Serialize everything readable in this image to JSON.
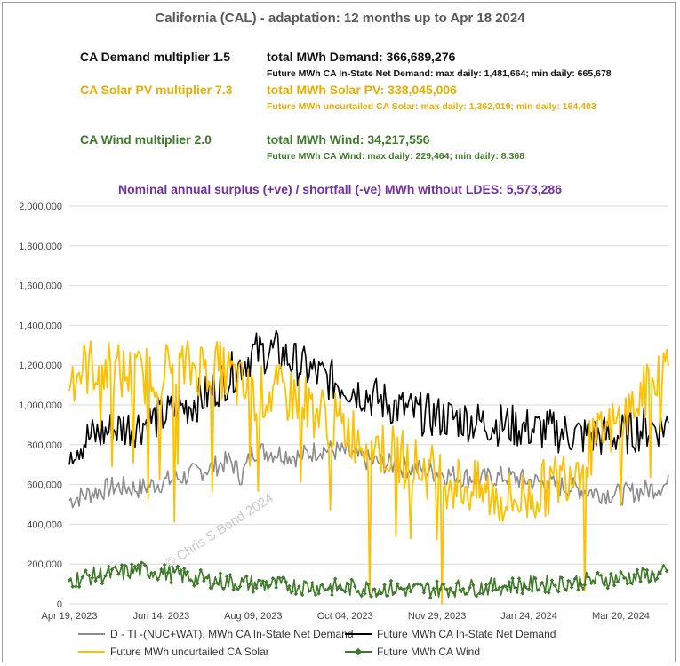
{
  "title": "California (CAL) - adaptation:  12 months up to  Apr 18 2024",
  "demand": {
    "label": "CA Demand multiplier  1.5",
    "total": "total MWh Demand:   366,689,276",
    "stats": "Future MWh  CA In-State Net Demand:  max daily: 1,481,664;  min daily: 665,678"
  },
  "solar": {
    "label": "CA Solar PV multiplier  7.3",
    "total": "total MWh Solar PV:   338,045,006",
    "stats": "Future MWh uncurtailed CA Solar:  max daily: 1,362,019;  min daily: 164,403"
  },
  "wind": {
    "label": "CA Wind multiplier  2.0",
    "total": "total MWh Wind:   34,217,556",
    "stats": "Future MWh  CA Wind:  max daily: 229,464;  min daily: 8,368"
  },
  "surplus": "Nominal annual surplus (+ve) / shortfall (-ve) MWh without LDES:  5,573,286",
  "watermark": "© Chris S Bond  2024",
  "colors": {
    "gray": "#8C8C8C",
    "black": "#000000",
    "solar": "#FFC000",
    "wind": "#3E7A2A",
    "purple": "#7030A0",
    "grid": "#D9D9D9"
  },
  "chart_data": {
    "type": "line",
    "ylim": [
      0,
      2000000
    ],
    "yticks": [
      "0",
      "200,000",
      "400,000",
      "600,000",
      "800,000",
      "1,000,000",
      "1,200,000",
      "1,400,000",
      "1,600,000",
      "1,800,000",
      "2,000,000"
    ],
    "xticks": [
      "Apr 19, 2023",
      "Jun 14, 2023",
      "Aug 09, 2023",
      "Oct 04, 2023",
      "Nov 29, 2023",
      "Jan 24, 2024",
      "Mar 20, 2024"
    ],
    "xrange_days": [
      0,
      365
    ],
    "grid": "horizontal",
    "legend_position": "bottom",
    "series": [
      {
        "name": "D - TI -(NUC+WAT), MWh  CA In-State Net Demand",
        "color_key": "gray",
        "points": [
          [
            0,
            520000
          ],
          [
            14,
            560000
          ],
          [
            28,
            590000
          ],
          [
            42,
            580000
          ],
          [
            56,
            610000
          ],
          [
            70,
            640000
          ],
          [
            84,
            680000
          ],
          [
            98,
            720000
          ],
          [
            105,
            640000
          ],
          [
            112,
            770000
          ],
          [
            126,
            760000
          ],
          [
            140,
            740000
          ],
          [
            154,
            780000
          ],
          [
            168,
            760000
          ],
          [
            182,
            720000
          ],
          [
            196,
            700000
          ],
          [
            210,
            680000
          ],
          [
            224,
            660000
          ],
          [
            238,
            640000
          ],
          [
            252,
            630000
          ],
          [
            266,
            640000
          ],
          [
            280,
            620000
          ],
          [
            294,
            600000
          ],
          [
            308,
            580000
          ],
          [
            322,
            560000
          ],
          [
            336,
            550000
          ],
          [
            350,
            570000
          ],
          [
            364,
            600000
          ]
        ]
      },
      {
        "name": "Future MWh  CA In-State Net Demand",
        "color_key": "black",
        "points": [
          [
            0,
            790000
          ],
          [
            14,
            840000
          ],
          [
            28,
            880000
          ],
          [
            42,
            900000
          ],
          [
            56,
            940000
          ],
          [
            70,
            990000
          ],
          [
            84,
            1050000
          ],
          [
            98,
            1150000
          ],
          [
            105,
            1210000
          ],
          [
            112,
            1260000
          ],
          [
            126,
            1270000
          ],
          [
            140,
            1200000
          ],
          [
            154,
            1140000
          ],
          [
            168,
            1100000
          ],
          [
            182,
            1050000
          ],
          [
            196,
            1000000
          ],
          [
            210,
            960000
          ],
          [
            224,
            940000
          ],
          [
            238,
            930000
          ],
          [
            252,
            910000
          ],
          [
            266,
            900000
          ],
          [
            280,
            880000
          ],
          [
            294,
            870000
          ],
          [
            308,
            850000
          ],
          [
            322,
            840000
          ],
          [
            336,
            850000
          ],
          [
            350,
            880000
          ],
          [
            364,
            900000
          ]
        ]
      },
      {
        "name": "Future MWh uncurtailed CA Solar",
        "color_key": "solar",
        "points": [
          [
            0,
            1150000
          ],
          [
            14,
            1200000
          ],
          [
            28,
            1170000
          ],
          [
            42,
            1140000
          ],
          [
            56,
            1180000
          ],
          [
            70,
            1180000
          ],
          [
            84,
            1200000
          ],
          [
            98,
            1150000
          ],
          [
            105,
            1080000
          ],
          [
            112,
            1050000
          ],
          [
            126,
            1060000
          ],
          [
            140,
            1040000
          ],
          [
            154,
            950000
          ],
          [
            168,
            880000
          ],
          [
            182,
            820000
          ],
          [
            196,
            760000
          ],
          [
            210,
            700000
          ],
          [
            224,
            650000
          ],
          [
            238,
            600000
          ],
          [
            252,
            560000
          ],
          [
            266,
            520000
          ],
          [
            280,
            540000
          ],
          [
            294,
            600000
          ],
          [
            308,
            700000
          ],
          [
            322,
            820000
          ],
          [
            336,
            920000
          ],
          [
            350,
            1050000
          ],
          [
            364,
            1200000
          ]
        ]
      },
      {
        "name": "Future MWh  CA Wind",
        "color_key": "wind",
        "points": [
          [
            0,
            120000
          ],
          [
            14,
            140000
          ],
          [
            28,
            150000
          ],
          [
            42,
            170000
          ],
          [
            56,
            160000
          ],
          [
            70,
            140000
          ],
          [
            84,
            120000
          ],
          [
            98,
            110000
          ],
          [
            112,
            100000
          ],
          [
            126,
            95000
          ],
          [
            140,
            90000
          ],
          [
            154,
            85000
          ],
          [
            168,
            80000
          ],
          [
            182,
            80000
          ],
          [
            196,
            75000
          ],
          [
            210,
            70000
          ],
          [
            224,
            75000
          ],
          [
            238,
            80000
          ],
          [
            252,
            85000
          ],
          [
            266,
            90000
          ],
          [
            280,
            95000
          ],
          [
            294,
            100000
          ],
          [
            308,
            110000
          ],
          [
            322,
            120000
          ],
          [
            336,
            130000
          ],
          [
            350,
            140000
          ],
          [
            364,
            150000
          ]
        ]
      }
    ]
  }
}
